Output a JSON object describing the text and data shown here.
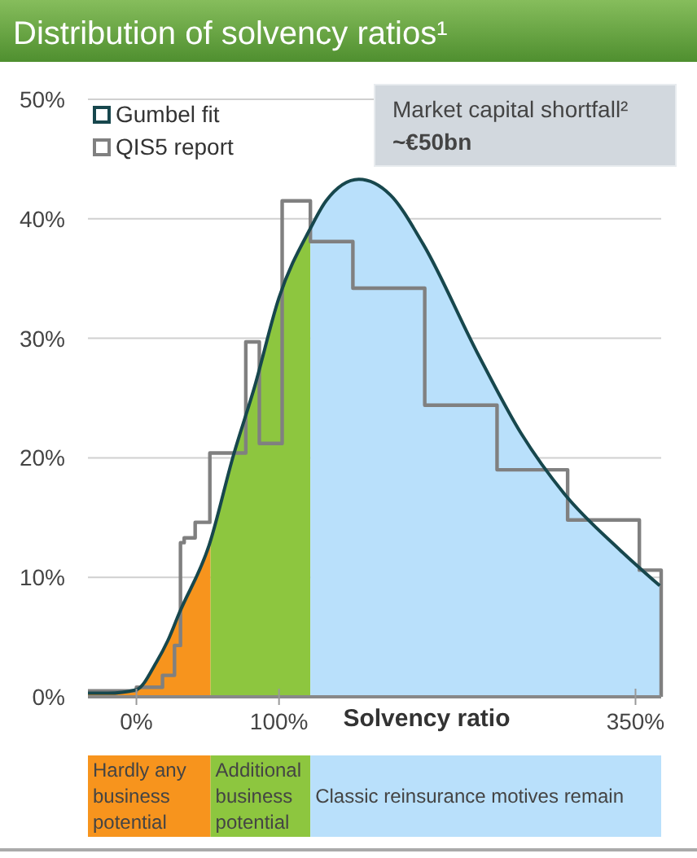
{
  "chart_data": {
    "type": "line",
    "title": "Distribution of solvency ratios¹",
    "xlabel": "Solvency ratio",
    "xlim": [
      -34,
      368
    ],
    "xticks": [
      {
        "value": 0,
        "label": "0%"
      },
      {
        "value": 100,
        "label": "100%"
      },
      {
        "value": 350,
        "label": "350%"
      }
    ],
    "ylim": [
      0,
      50
    ],
    "yticks": [
      {
        "value": 0,
        "label": "0%"
      },
      {
        "value": 10,
        "label": "10%"
      },
      {
        "value": 20,
        "label": "20%"
      },
      {
        "value": 30,
        "label": "30%"
      },
      {
        "value": 40,
        "label": "40%"
      },
      {
        "value": 50,
        "label": "50%"
      }
    ],
    "grid": "y",
    "legend": "top left",
    "marker": "none",
    "series": [
      {
        "name": "Gumbel fit",
        "color": "#17474d",
        "x": [
          -34,
          -20,
          0,
          14,
          22,
          30,
          51,
          68,
          83,
          100,
          122,
          133,
          156,
          178,
          201,
          239,
          270,
          300,
          339,
          367
        ],
        "values": [
          0.3,
          0.3,
          0.6,
          2.9,
          4.7,
          7,
          12.7,
          20.2,
          26,
          33.4,
          39.2,
          41.5,
          43.3,
          42,
          37.9,
          28.8,
          22,
          17,
          12.3,
          9.3
        ]
      },
      {
        "name": "QIS5 report",
        "type": "step",
        "color": "#808080",
        "x": [
          -34,
          0,
          18.3,
          26.7,
          30.9,
          33.5,
          41.2,
          51.5,
          76.7,
          86.2,
          102.2,
          122,
          151.8,
          202.2,
          252.9,
          302.4,
          352.7,
          368
        ],
        "values": [
          0.5,
          0.8,
          1.8,
          4.3,
          12.9,
          13.3,
          14.6,
          20.4,
          29.7,
          21.2,
          41.5,
          38.1,
          34.2,
          24.4,
          19,
          14.8,
          10.6,
          0
        ]
      }
    ],
    "bands": [
      {
        "axis": "x",
        "from": -34,
        "to": 52,
        "label": "Hardly any business potential",
        "color": "#f7941d"
      },
      {
        "axis": "x",
        "from": 52,
        "to": 122,
        "label": "Additional business potential",
        "color": "#8dc63f"
      },
      {
        "axis": "x",
        "from": 122,
        "to": 368,
        "label": "Classic reinsurance motives remain",
        "color": "#b9e0fb"
      }
    ],
    "annotations": [
      "Market capital shortfall²",
      "~€50bn"
    ]
  }
}
